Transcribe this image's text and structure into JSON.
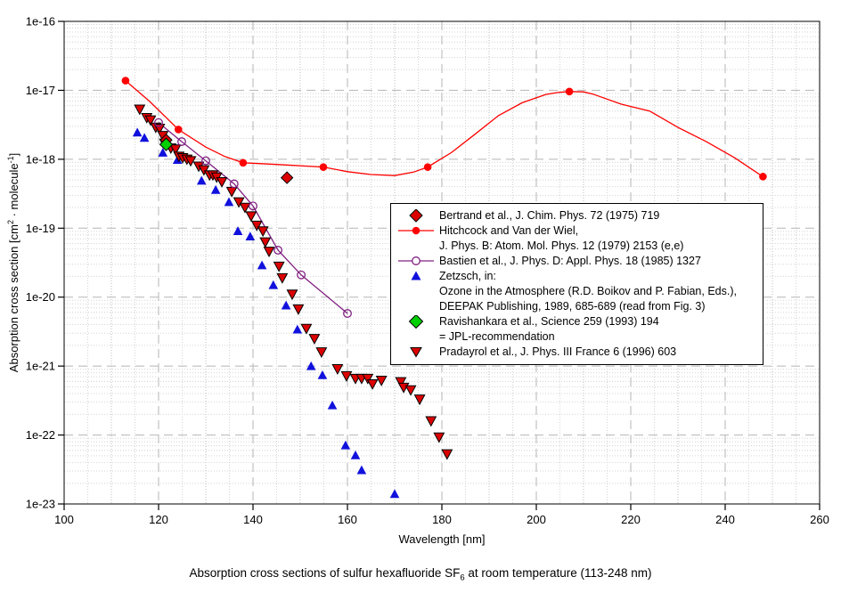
{
  "figure": {
    "caption": "Absorption cross sections of sulfur hexafluoride SF6 at room temperature (113-248 nm)",
    "caption_parts": {
      "pre": "Absorption cross sections of sulfur hexafluoride SF",
      "sub": "6",
      "post": " at room temperature (113-248 nm)"
    }
  },
  "chart_data": {
    "type": "scatter",
    "title": "Absorption cross sections of sulfur hexafluoride SF6 at room temperature (113-248 nm)",
    "xlabel": "Wavelength [nm]",
    "ylabel": "Absorption cross section [cm2 · molecule-1]",
    "ylabel_parts": {
      "pre": "Absorption cross section [cm",
      "sup1": "2",
      "mid": " · molecule",
      "sup2": "-1",
      "post": "]"
    },
    "xlim": [
      100,
      260
    ],
    "x_ticks": [
      100,
      120,
      140,
      160,
      180,
      200,
      220,
      240,
      260
    ],
    "x_minor_step": 5,
    "ylim_exp": [
      -16,
      -23
    ],
    "y_ticks": [
      "1e-16",
      "1e-17",
      "1e-18",
      "1e-19",
      "1e-20",
      "1e-21",
      "1e-22",
      "1e-23"
    ],
    "grid": true,
    "legend_position": "center-right",
    "colors": {
      "bright_red": "#ff0000",
      "dark_red": "#dd0000",
      "purple": "#802080",
      "blue": "#1111dd",
      "green": "#00d000",
      "grid_minor": "#d4d4d4",
      "grid_semi": "#bdbdbd",
      "grid_major": "#b5b5b5",
      "frame": "#000000"
    },
    "series": [
      {
        "id": "bertrand",
        "marker": "diamond",
        "color": "#dd0000",
        "outline": "#000000",
        "size": 6.5,
        "line": false,
        "legend_lines": [
          "Bertrand et al., J. Chim. Phys. 72 (1975) 719"
        ],
        "points": [
          [
            121.6,
            1.9e-18
          ],
          [
            147.2,
            5.4e-19
          ]
        ]
      },
      {
        "id": "hitchcock",
        "marker": "circle",
        "color": "#ff0000",
        "outline": "none",
        "size": 4.3,
        "line": true,
        "legend_lines": [
          "Hitchcock and Van der Wiel,",
          "J. Phys. B: Atom. Mol. Phys. 12 (1979) 2153 (e,e)"
        ],
        "points": [
          [
            113,
            1.38e-17
          ],
          [
            124.2,
            2.7e-18
          ],
          [
            137.9,
            8.9e-19
          ],
          [
            154.9,
            7.7e-19
          ],
          [
            177,
            7.7e-19
          ],
          [
            207,
            9.6e-18
          ],
          [
            248,
            5.6e-19
          ]
        ],
        "line_points": [
          [
            113,
            1.38e-17
          ],
          [
            118,
            7e-18
          ],
          [
            124.2,
            2.7e-18
          ],
          [
            130,
            1.5e-18
          ],
          [
            134,
            1.1e-18
          ],
          [
            137.9,
            8.9e-19
          ],
          [
            145,
            8.4e-19
          ],
          [
            154.9,
            7.7e-19
          ],
          [
            160,
            6.6e-19
          ],
          [
            165,
            6e-19
          ],
          [
            170,
            5.8e-19
          ],
          [
            174,
            6.5e-19
          ],
          [
            177,
            7.7e-19
          ],
          [
            182,
            1.25e-18
          ],
          [
            187,
            2.3e-18
          ],
          [
            192,
            4.3e-18
          ],
          [
            197,
            6.6e-18
          ],
          [
            202,
            8.7e-18
          ],
          [
            204.5,
            9.3e-18
          ],
          [
            207,
            9.6e-18
          ],
          [
            210,
            9.5e-18
          ],
          [
            212,
            8.8e-18
          ],
          [
            218,
            6.3e-18
          ],
          [
            224,
            5e-18
          ],
          [
            230,
            2.9e-18
          ],
          [
            236,
            1.8e-18
          ],
          [
            242,
            1.05e-18
          ],
          [
            248,
            5.6e-19
          ]
        ]
      },
      {
        "id": "bastien",
        "marker": "open-circle",
        "color": "#802080",
        "outline": "#802080",
        "size": 4.3,
        "line": true,
        "legend_lines": [
          "Bastien et al., J. Phys. D: Appl. Phys. 18 (1985) 1327"
        ],
        "points": [
          [
            120,
            3.4e-18
          ],
          [
            124.9,
            1.8e-18
          ],
          [
            130,
            9.5e-19
          ],
          [
            136,
            4.4e-19
          ],
          [
            140,
            2.1e-19
          ],
          [
            145.3,
            4.8e-20
          ],
          [
            150.2,
            2.1e-20
          ],
          [
            160,
            5.8e-21
          ]
        ]
      },
      {
        "id": "zetzsch",
        "marker": "triangle-up",
        "color": "#1111dd",
        "outline": "none",
        "size": 5.3,
        "line": false,
        "legend_lines": [
          "Zetzsch, in:",
          "Ozone in the Atmosphere (R.D. Boikov and P. Fabian, Eds.),",
          "DEEPAK Publishing, 1989, 685-689 (read from Fig. 3)"
        ],
        "points": [
          [
            115.5,
            2.45e-18
          ],
          [
            117,
            2.05e-18
          ],
          [
            120.9,
            1.25e-18
          ],
          [
            124,
            9.8e-19
          ],
          [
            129.1,
            4.9e-19
          ],
          [
            132.1,
            3.6e-19
          ],
          [
            134.9,
            2.4e-19
          ],
          [
            136.8,
            9.1e-20
          ],
          [
            139.4,
            7.6e-20
          ],
          [
            141.9,
            2.9e-20
          ],
          [
            144.3,
            1.5e-20
          ],
          [
            147,
            7.6e-21
          ],
          [
            149.4,
            3.4e-21
          ],
          [
            152.3,
            1e-21
          ],
          [
            154.7,
            7.4e-22
          ],
          [
            156.8,
            2.7e-22
          ],
          [
            159.6,
            7.1e-23
          ],
          [
            161.7,
            5.1e-23
          ],
          [
            163,
            3.1e-23
          ],
          [
            170,
            1.4e-23
          ]
        ]
      },
      {
        "id": "ravishankara",
        "marker": "diamond",
        "color": "#00d000",
        "outline": "#000000",
        "size": 7,
        "line": false,
        "legend_lines": [
          "Ravishankara et al., Science 259 (1993) 194",
          "= JPL-recommendation"
        ],
        "points": [
          [
            121.6,
            1.64e-18
          ]
        ]
      },
      {
        "id": "pradayrol",
        "marker": "triangle-down",
        "color": "#dd0000",
        "outline": "#000000",
        "size": 5.6,
        "line": false,
        "legend_lines": [
          "Pradayrol et al., J. Phys. III France 6 (1996) 603"
        ],
        "points": [
          [
            116.0,
            5.3e-18
          ],
          [
            117.5,
            4e-18
          ],
          [
            118.3,
            3.7e-18
          ],
          [
            119.4,
            2.9e-18
          ],
          [
            120.2,
            2.8e-18
          ],
          [
            120.9,
            2.2e-18
          ],
          [
            121.3,
            1.7e-18
          ],
          [
            122.6,
            1.45e-18
          ],
          [
            123.6,
            1.4e-18
          ],
          [
            124.3,
            1.1e-18
          ],
          [
            125.1,
            1.05e-18
          ],
          [
            126.0,
            1e-18
          ],
          [
            126.8,
            9.5e-19
          ],
          [
            128.5,
            7.9e-19
          ],
          [
            129.6,
            7e-19
          ],
          [
            130.8,
            5.9e-19
          ],
          [
            131.5,
            5.9e-19
          ],
          [
            132.3,
            5.5e-19
          ],
          [
            133.4,
            4.7e-19
          ],
          [
            135.5,
            3.4e-19
          ],
          [
            137.0,
            2.4e-19
          ],
          [
            138.3,
            2e-19
          ],
          [
            139.6,
            1.5e-19
          ],
          [
            140.8,
            1.1e-19
          ],
          [
            142.1,
            9.1e-20
          ],
          [
            142.6,
            6.3e-20
          ],
          [
            143.4,
            4.6e-20
          ],
          [
            145.5,
            2.8e-20
          ],
          [
            146.2,
            1.9e-20
          ],
          [
            148.3,
            1.1e-20
          ],
          [
            149.6,
            6.7e-21
          ],
          [
            151.3,
            3.5e-21
          ],
          [
            153.0,
            2.5e-21
          ],
          [
            154.5,
            1.6e-21
          ],
          [
            157.9,
            9.1e-22
          ],
          [
            159.8,
            7.2e-22
          ],
          [
            161.7,
            6.6e-22
          ],
          [
            163.0,
            6.6e-22
          ],
          [
            164.3,
            6.6e-22
          ],
          [
            165.3,
            5.5e-22
          ],
          [
            167.2,
            6.2e-22
          ],
          [
            171.3,
            5.9e-22
          ],
          [
            171.9,
            4.9e-22
          ],
          [
            173.4,
            4.5e-22
          ],
          [
            175.3,
            3.3e-22
          ],
          [
            177.7,
            1.6e-22
          ],
          [
            179.4,
            9.3e-23
          ],
          [
            181.1,
            5.3e-23
          ]
        ]
      }
    ]
  }
}
